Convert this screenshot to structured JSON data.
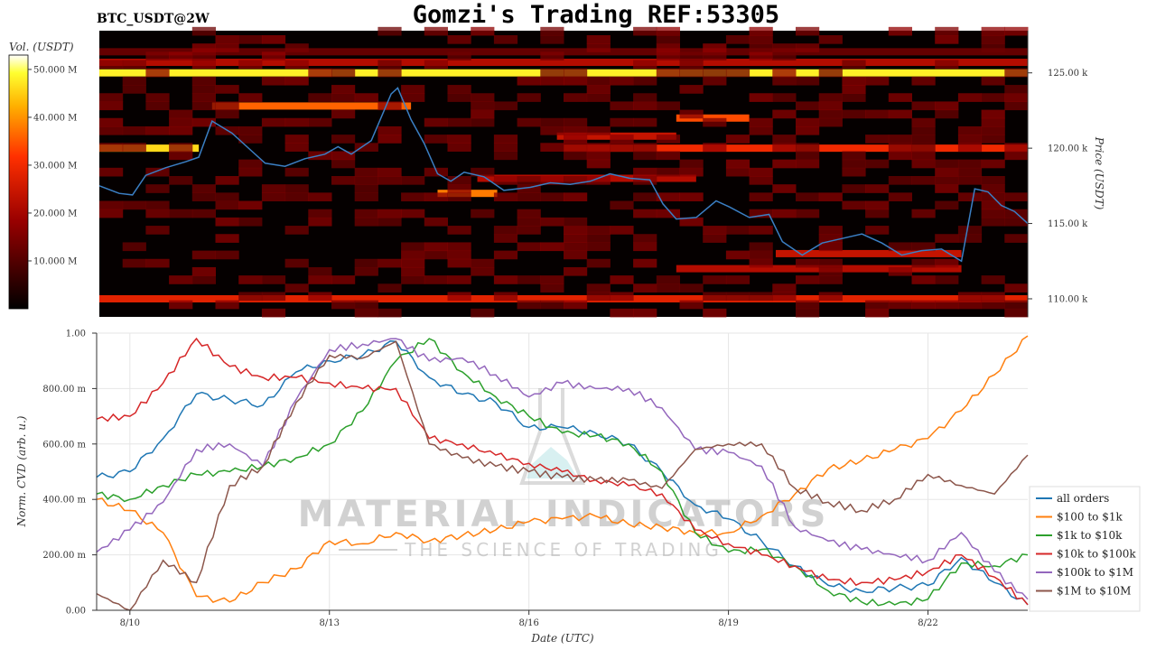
{
  "header": {
    "title": "Gomzi's Trading REF:53305",
    "symbol": "BTC_USDT@2W"
  },
  "watermark": {
    "brand": "MATERIAL INDICATORS",
    "tagline": "THE SCIENCE OF TRADING"
  },
  "chart_data": [
    {
      "type": "heatmap",
      "name_on_chart": "",
      "colorbar": {
        "label": "Vol. (USDT)",
        "ticks": [
          "10.000 M",
          "20.000 M",
          "30.000 M",
          "40.000 M",
          "50.000 M"
        ],
        "tick_values": [
          10,
          20,
          30,
          40,
          50
        ],
        "range": [
          0,
          53
        ]
      },
      "ylabel": "Price (USDT)",
      "y_ticks": [
        "110.00 k",
        "115.00 k",
        "120.00 k",
        "125.00 k"
      ],
      "y_tick_values": [
        110,
        115,
        120,
        125
      ],
      "ylim": [
        108.8,
        127.8
      ],
      "x_range_days": [
        9.5,
        23.5
      ],
      "heat_bands": [
        {
          "price": 125.0,
          "value": 48,
          "from": 9.5,
          "to": 23.5
        },
        {
          "price": 125.7,
          "value": 22,
          "from": 9.5,
          "to": 23.5
        },
        {
          "price": 126.4,
          "value": 12,
          "from": 9.5,
          "to": 23.5
        },
        {
          "price": 110.0,
          "value": 28,
          "from": 9.5,
          "to": 23.5
        },
        {
          "price": 120.0,
          "value": 30,
          "from": 16.5,
          "to": 23.5
        },
        {
          "price": 120.0,
          "value": 46,
          "from": 9.5,
          "to": 11.0
        },
        {
          "price": 122.8,
          "value": 36,
          "from": 11.2,
          "to": 14.2
        },
        {
          "price": 122.0,
          "value": 34,
          "from": 18.2,
          "to": 19.3
        },
        {
          "price": 117.0,
          "value": 38,
          "from": 14.6,
          "to": 15.5
        },
        {
          "price": 113.0,
          "value": 24,
          "from": 19.7,
          "to": 22.5
        },
        {
          "price": 112.0,
          "value": 22,
          "from": 18.2,
          "to": 22.5
        },
        {
          "price": 120.8,
          "value": 24,
          "from": 16.4,
          "to": 18.2
        },
        {
          "price": 118.0,
          "value": 22,
          "from": 15.2,
          "to": 18.5
        }
      ],
      "series": [
        {
          "name": "BTC price",
          "color": "#3b7fc4",
          "x": [
            9.5,
            9.8,
            10.0,
            10.2,
            10.5,
            10.8,
            11.0,
            11.2,
            11.5,
            11.8,
            12.0,
            12.3,
            12.6,
            12.9,
            13.1,
            13.3,
            13.6,
            13.9,
            14.0,
            14.2,
            14.4,
            14.6,
            14.8,
            15.0,
            15.3,
            15.6,
            16.0,
            16.3,
            16.6,
            16.9,
            17.2,
            17.5,
            17.8,
            18.0,
            18.2,
            18.5,
            18.8,
            19.0,
            19.3,
            19.6,
            19.8,
            20.1,
            20.4,
            20.7,
            21.0,
            21.3,
            21.6,
            21.9,
            22.2,
            22.5,
            22.7,
            22.9,
            23.1,
            23.3,
            23.5
          ],
          "y": [
            117.5,
            117.0,
            116.9,
            118.2,
            118.7,
            119.1,
            119.4,
            121.8,
            121.0,
            119.8,
            119.0,
            118.8,
            119.3,
            119.6,
            120.1,
            119.6,
            120.5,
            123.6,
            124.0,
            121.9,
            120.3,
            118.3,
            117.8,
            118.4,
            118.1,
            117.2,
            117.4,
            117.7,
            117.6,
            117.8,
            118.3,
            118.0,
            117.9,
            116.3,
            115.3,
            115.4,
            116.5,
            116.1,
            115.4,
            115.6,
            113.8,
            112.9,
            113.7,
            114.0,
            114.3,
            113.7,
            112.9,
            113.2,
            113.3,
            112.5,
            117.3,
            117.1,
            116.2,
            115.8,
            115.0
          ]
        }
      ]
    },
    {
      "type": "line",
      "xlabel": "Date (UTC)",
      "ylabel": "Norm. CVD (arb. u.)",
      "x_tick_labels": [
        "8/10",
        "8/13",
        "8/16",
        "8/19",
        "8/22"
      ],
      "x_tick_values": [
        10,
        13,
        16,
        19,
        22
      ],
      "xlim": [
        9.5,
        23.5
      ],
      "y_tick_labels": [
        "0.00",
        "200.00 m",
        "400.00 m",
        "600.00 m",
        "800.00 m",
        "1.00"
      ],
      "y_tick_values": [
        0,
        0.2,
        0.4,
        0.6,
        0.8,
        1.0
      ],
      "ylim": [
        0,
        1.0
      ],
      "grid": true,
      "legend_position": "right",
      "x": [
        9.5,
        10.0,
        10.5,
        11.0,
        11.5,
        12.0,
        12.5,
        13.0,
        13.5,
        14.0,
        14.5,
        15.0,
        15.5,
        16.0,
        16.5,
        17.0,
        17.5,
        18.0,
        18.5,
        19.0,
        19.5,
        20.0,
        20.5,
        21.0,
        21.5,
        22.0,
        22.5,
        23.0,
        23.5
      ],
      "series": [
        {
          "name": "all orders",
          "color": "#1f77b4",
          "values": [
            0.48,
            0.5,
            0.62,
            0.78,
            0.76,
            0.74,
            0.86,
            0.9,
            0.92,
            0.97,
            0.84,
            0.78,
            0.75,
            0.66,
            0.66,
            0.64,
            0.6,
            0.5,
            0.38,
            0.33,
            0.25,
            0.16,
            0.09,
            0.07,
            0.08,
            0.09,
            0.19,
            0.1,
            0.02
          ]
        },
        {
          "name": "$100 to $1k",
          "color": "#ff7f0e",
          "values": [
            0.4,
            0.36,
            0.28,
            0.05,
            0.03,
            0.1,
            0.15,
            0.25,
            0.24,
            0.28,
            0.25,
            0.27,
            0.29,
            0.32,
            0.33,
            0.34,
            0.31,
            0.3,
            0.28,
            0.28,
            0.34,
            0.42,
            0.51,
            0.54,
            0.58,
            0.62,
            0.72,
            0.85,
            0.99
          ]
        },
        {
          "name": "$1k to $10k",
          "color": "#2ca02c",
          "values": [
            0.42,
            0.4,
            0.45,
            0.49,
            0.5,
            0.52,
            0.55,
            0.6,
            0.72,
            0.9,
            0.98,
            0.86,
            0.77,
            0.7,
            0.64,
            0.63,
            0.6,
            0.5,
            0.28,
            0.21,
            0.22,
            0.16,
            0.07,
            0.03,
            0.02,
            0.04,
            0.17,
            0.16,
            0.2
          ]
        },
        {
          "name": "$10k to $100k",
          "color": "#d62728",
          "values": [
            0.69,
            0.7,
            0.82,
            0.98,
            0.88,
            0.84,
            0.84,
            0.82,
            0.8,
            0.8,
            0.62,
            0.6,
            0.56,
            0.53,
            0.5,
            0.47,
            0.45,
            0.42,
            0.29,
            0.24,
            0.2,
            0.16,
            0.11,
            0.1,
            0.11,
            0.14,
            0.2,
            0.12,
            0.02
          ]
        },
        {
          "name": "$100k to $1M",
          "color": "#9467bd",
          "values": [
            0.21,
            0.29,
            0.39,
            0.58,
            0.6,
            0.52,
            0.76,
            0.94,
            0.96,
            0.98,
            0.9,
            0.91,
            0.85,
            0.77,
            0.82,
            0.8,
            0.8,
            0.73,
            0.58,
            0.57,
            0.52,
            0.3,
            0.25,
            0.22,
            0.2,
            0.18,
            0.28,
            0.14,
            0.04
          ]
        },
        {
          "name": "$1M to $10M",
          "color": "#8c564b",
          "values": [
            0.06,
            0.0,
            0.18,
            0.1,
            0.45,
            0.52,
            0.75,
            0.92,
            0.91,
            0.97,
            0.6,
            0.55,
            0.52,
            0.5,
            0.48,
            0.47,
            0.47,
            0.44,
            0.58,
            0.6,
            0.6,
            0.44,
            0.39,
            0.36,
            0.4,
            0.49,
            0.45,
            0.42,
            0.56
          ]
        }
      ]
    }
  ]
}
